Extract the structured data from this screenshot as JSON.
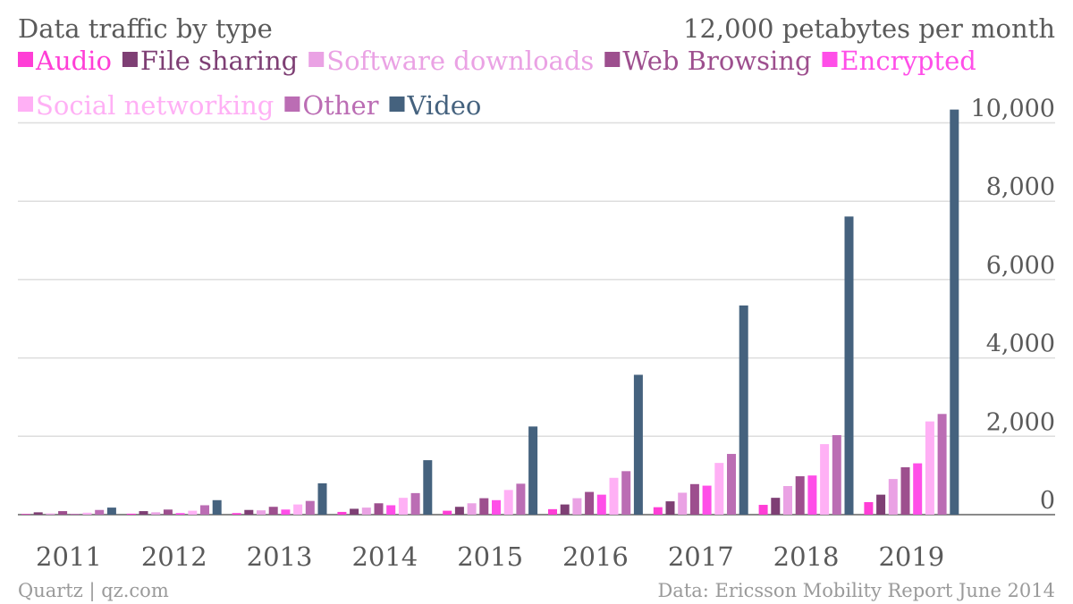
{
  "chart_data": {
    "type": "bar",
    "title": "Data traffic by type",
    "unit_label": "12,000 petabytes per month",
    "source": "Data: Ericsson Mobility Report June 2014",
    "credit": "Quartz | qz.com",
    "categories": [
      "2011",
      "2012",
      "2013",
      "2014",
      "2015",
      "2016",
      "2017",
      "2018",
      "2019"
    ],
    "ylim": [
      0,
      10400
    ],
    "yticks": [
      {
        "value": 0,
        "label": "0"
      },
      {
        "value": 2000,
        "label": "2,000"
      },
      {
        "value": 4000,
        "label": "4,000"
      },
      {
        "value": 6000,
        "label": "6,000"
      },
      {
        "value": 8000,
        "label": "8,000"
      },
      {
        "value": 10000,
        "label": "10,000"
      }
    ],
    "legend_position": "top-left",
    "grid": true,
    "series": [
      {
        "name": "Audio",
        "color": "#ff3ed6",
        "values": [
          15,
          25,
          40,
          70,
          100,
          140,
          190,
          250,
          320
        ]
      },
      {
        "name": "File sharing",
        "color": "#7e3f74",
        "values": [
          60,
          90,
          120,
          150,
          200,
          260,
          340,
          430,
          510
        ]
      },
      {
        "name": "Software downloads",
        "color": "#eaa2e4",
        "values": [
          30,
          60,
          110,
          180,
          290,
          420,
          560,
          730,
          910
        ]
      },
      {
        "name": "Web Browsing",
        "color": "#9d4f8e",
        "values": [
          90,
          130,
          200,
          290,
          420,
          580,
          780,
          980,
          1210
        ]
      },
      {
        "name": "Encrypted",
        "color": "#ff4ee8",
        "values": [
          10,
          40,
          130,
          240,
          370,
          510,
          740,
          1000,
          1310
        ]
      },
      {
        "name": "Social networking",
        "color": "#ffb0f5",
        "values": [
          50,
          100,
          260,
          430,
          630,
          940,
          1320,
          1800,
          2380
        ]
      },
      {
        "name": "Other",
        "color": "#bb6db4",
        "values": [
          120,
          240,
          350,
          550,
          790,
          1110,
          1550,
          2030,
          2570
        ]
      },
      {
        "name": "Video",
        "color": "#45627e",
        "values": [
          180,
          370,
          800,
          1390,
          2250,
          3570,
          5340,
          7610,
          10340
        ]
      }
    ]
  }
}
